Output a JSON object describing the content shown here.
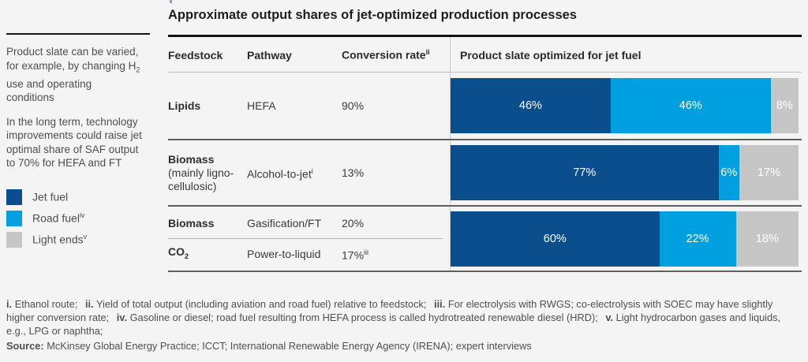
{
  "title": "Approximate output shares of jet-optimized production processes",
  "sidebar": {
    "note1_before_sub": "Product slate can be varied, for example, by changing H",
    "note1_sub": "2",
    "note1_after_sub": " use and operating conditions",
    "note2": "In the long term, technology improvements could raise jet optimal share of SAF output to 70% for HEFA and FT"
  },
  "legend": {
    "items": [
      {
        "label": "Jet fuel",
        "sup": ""
      },
      {
        "label": "Road fuel",
        "sup": "iv"
      },
      {
        "label": "Light ends",
        "sup": "v"
      }
    ]
  },
  "table": {
    "headers": {
      "feedstock": "Feedstock",
      "pathway": "Pathway",
      "conversion": "Conversion rate",
      "conversion_sup": "ii",
      "product_slate": "Product slate optimized for jet fuel"
    },
    "rows": [
      {
        "feedstock": "Lipids",
        "pathway": "HEFA",
        "pathway_sup": "",
        "conversion": "90%",
        "conversion_sup": ""
      },
      {
        "feedstock": "Biomass",
        "feedstock_note": "(mainly ligno-cellulosic)",
        "pathway": "Alcohol-to-jet",
        "pathway_sup": "i",
        "conversion": "13%",
        "conversion_sup": ""
      },
      {
        "feedstock": "Biomass",
        "pathway": "Gasification/FT",
        "pathway_sup": "",
        "conversion": "20%",
        "conversion_sup": ""
      },
      {
        "feedstock_base": "CO",
        "feedstock_sub": "2",
        "pathway": "Power-to-liquid",
        "pathway_sup": "",
        "conversion": "17%",
        "conversion_sup": "iii"
      }
    ]
  },
  "chart_data": {
    "type": "bar",
    "subtype": "horizontal-stacked",
    "title": "Product slate optimized for jet fuel",
    "categories": [
      "Lipids — HEFA",
      "Biomass (mainly ligno-cellulosic) — Alcohol-to-jet",
      "Biomass / CO2 — Gasification/FT / Power-to-liquid"
    ],
    "series": [
      {
        "name": "Jet fuel",
        "color": "#0b4e8e",
        "values": [
          46,
          77,
          60
        ]
      },
      {
        "name": "Road fuel",
        "color": "#00a0e0",
        "values": [
          46,
          6,
          22
        ]
      },
      {
        "name": "Light ends",
        "color": "#c6c6c6",
        "values": [
          8,
          17,
          18
        ]
      }
    ],
    "value_suffix": "%",
    "xlim": [
      0,
      100
    ],
    "legend_position": "left",
    "grid": false
  },
  "footnotes": [
    {
      "marker": "i.",
      "text": "Ethanol route;"
    },
    {
      "marker": "ii.",
      "text": "Yield of total output (including aviation and road fuel) relative to feedstock;"
    },
    {
      "marker": "iii.",
      "text": "For electrolysis with RWGS; co-electrolysis with SOEC may have slightly higher conversion rate;"
    },
    {
      "marker": "iv.",
      "text": "Gasoline or diesel; road fuel resulting from HEFA process is called hydrotreated renewable diesel (HRD);"
    },
    {
      "marker": "v.",
      "text": "Light hydrocarbon gases and liquids, e.g., LPG or naphtha;"
    }
  ],
  "source": {
    "label": "Source:",
    "text": "McKinsey Global Energy Practice; ICCT; International Renewable Energy Agency (IRENA); expert interviews"
  }
}
